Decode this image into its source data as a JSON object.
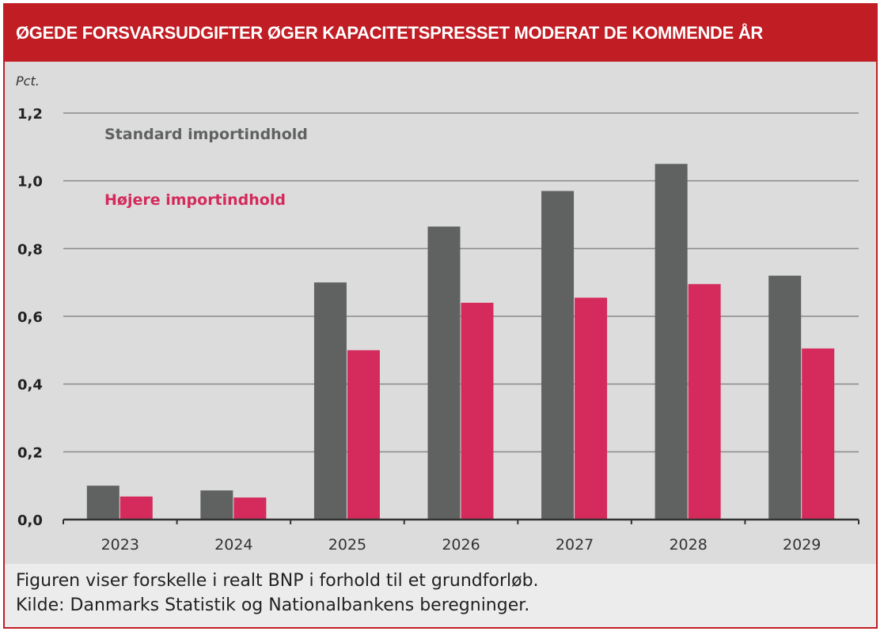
{
  "title": "ØGEDE FORSVARSUDGIFTER ØGER KAPACITETSPRESSET MODERAT DE KOMMENDE ÅR",
  "footer": {
    "note": "Figuren viser forskelle i realt BNP i forhold til et grundforløb.",
    "source": "Kilde: Danmarks Statistik og Nationalbankens beregninger."
  },
  "chart_data": {
    "type": "bar",
    "ylabel": "Pct.",
    "ylim": [
      0,
      1.2
    ],
    "yticks": [
      "0,0",
      "0,2",
      "0,4",
      "0,6",
      "0,8",
      "1,0",
      "1,2"
    ],
    "grid": true,
    "categories": [
      "2023",
      "2024",
      "2025",
      "2026",
      "2027",
      "2028",
      "2029"
    ],
    "series": [
      {
        "name": "Standard importindhold",
        "color": "#5f6261",
        "values": [
          0.1,
          0.086,
          0.7,
          0.865,
          0.97,
          1.05,
          0.72
        ]
      },
      {
        "name": "Højere importindhold",
        "color": "#d42a5c",
        "values": [
          0.068,
          0.065,
          0.5,
          0.64,
          0.655,
          0.695,
          0.505
        ]
      }
    ],
    "legend": "top-left inside"
  }
}
